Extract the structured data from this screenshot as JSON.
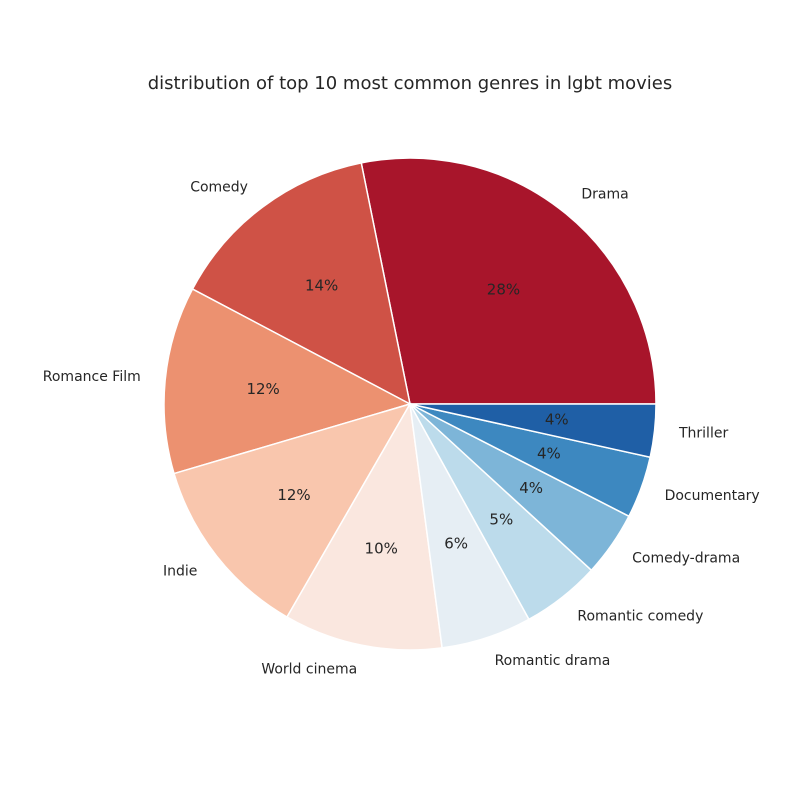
{
  "chart_data": {
    "type": "pie",
    "title": "distribution of top 10 most common genres in lgbt movies",
    "slices": [
      {
        "label": "Drama",
        "value": 28.4,
        "pct_label": "28%",
        "color": "#a8152b"
      },
      {
        "label": "Comedy",
        "value": 14.2,
        "pct_label": "14%",
        "color": "#cf5246"
      },
      {
        "label": "Romance Film",
        "value": 12.4,
        "pct_label": "12%",
        "color": "#ec9170"
      },
      {
        "label": "Indie",
        "value": 12.2,
        "pct_label": "12%",
        "color": "#f9c6ad"
      },
      {
        "label": "World cinema",
        "value": 10.5,
        "pct_label": "10%",
        "color": "#fae7df"
      },
      {
        "label": "Romantic drama",
        "value": 6.0,
        "pct_label": "6%",
        "color": "#e6eef4"
      },
      {
        "label": "Romantic comedy",
        "value": 5.2,
        "pct_label": "5%",
        "color": "#bcdbeb"
      },
      {
        "label": "Comedy-drama",
        "value": 4.3,
        "pct_label": "4%",
        "color": "#7db5d8"
      },
      {
        "label": "Documentary",
        "value": 4.1,
        "pct_label": "4%",
        "color": "#3d88c0"
      },
      {
        "label": "Thriller",
        "value": 3.5,
        "pct_label": "4%",
        "color": "#1f5fa6"
      }
    ],
    "start_angle_deg": 0,
    "direction": "counterclockwise",
    "legend": "none"
  }
}
